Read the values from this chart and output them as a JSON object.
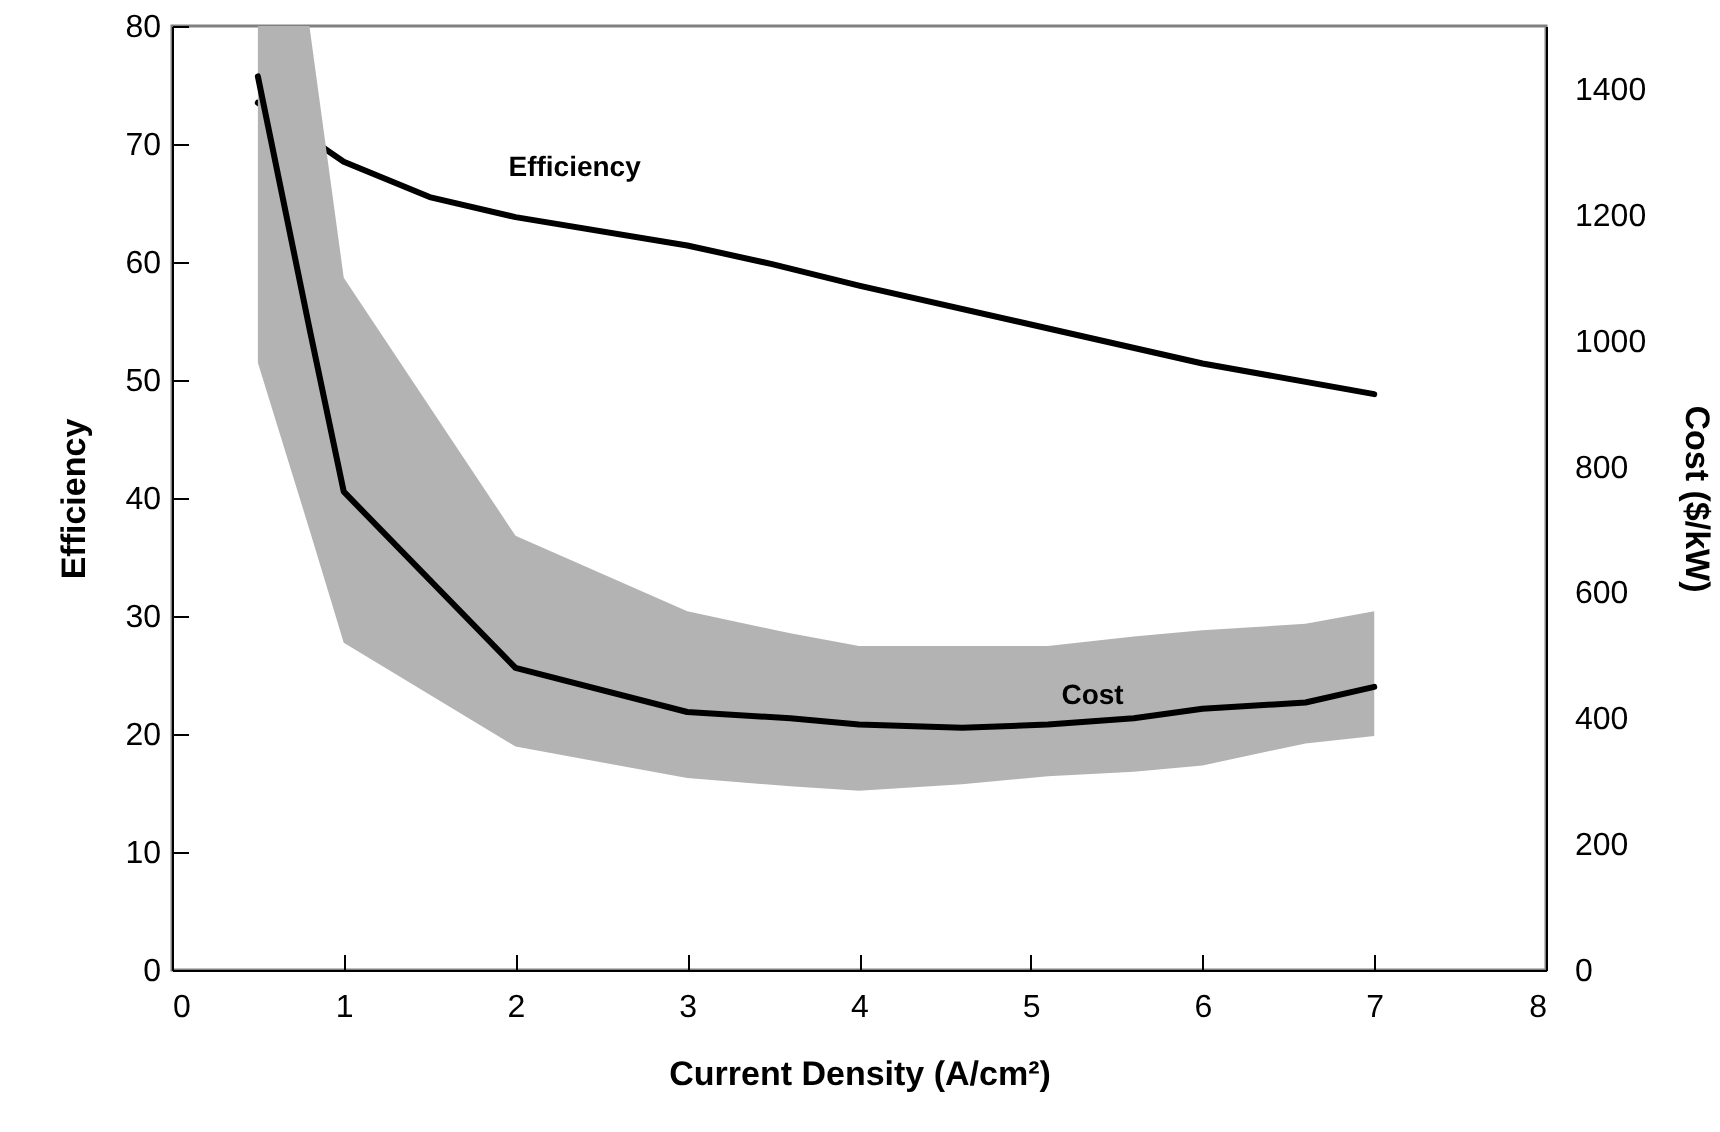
{
  "chart_data": {
    "type": "line",
    "xlabel": "Current Density (A/cm²)",
    "ylabel": "Efficiency",
    "y2label": "Cost ($/kW)",
    "xlim": [
      0,
      8
    ],
    "xticks": [
      0,
      1,
      2,
      3,
      4,
      5,
      6,
      7,
      8
    ],
    "ylim": [
      0,
      80
    ],
    "yticks": [
      0,
      10,
      20,
      30,
      40,
      50,
      60,
      70,
      80
    ],
    "y2lim": [
      0,
      1500
    ],
    "y2ticks": [
      0,
      200,
      400,
      600,
      800,
      1000,
      1200,
      1400
    ],
    "series": [
      {
        "name": "Efficiency",
        "color": "#000000",
        "x": [
          0.5,
          1,
          1.5,
          2,
          3,
          3.5,
          4,
          5,
          6,
          7
        ],
        "values": [
          73.5,
          68.5,
          65.5,
          63.8,
          61.4,
          59.8,
          58,
          54.7,
          51.4,
          48.8
        ]
      },
      {
        "name": "Cost",
        "color": "#000000",
        "axis": "y2",
        "x": [
          0.5,
          0.8,
          1,
          2,
          3,
          3.6,
          4,
          4.6,
          5.1,
          5.6,
          6,
          6.6,
          7
        ],
        "values": [
          1420,
          1020,
          760,
          480,
          410,
          400,
          390,
          385,
          390,
          400,
          415,
          425,
          450
        ],
        "lower": [
          965,
          700,
          520,
          355,
          305,
          292,
          285,
          295,
          308,
          315,
          325,
          360,
          372
        ],
        "upper": [
          1500,
          1500,
          1100,
          690,
          570,
          535,
          515,
          515,
          515,
          530,
          540,
          550,
          570
        ]
      }
    ]
  }
}
